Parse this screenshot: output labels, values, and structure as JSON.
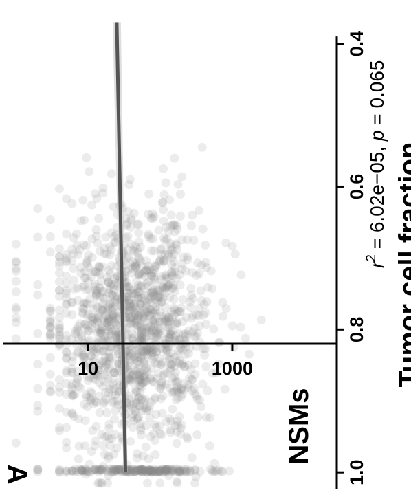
{
  "panel_label": "A",
  "chart_data": {
    "type": "scatter",
    "orientation": "rotated 90 degrees clockwise",
    "xlabel": "Tumor cell fraction",
    "ylabel": "NSMs",
    "x_ticks": [
      "0.4",
      "0.6",
      "0.8",
      "1.0"
    ],
    "x_tick_values": [
      0.4,
      0.6,
      0.8,
      1.0
    ],
    "y_ticks": [
      "10",
      "1000"
    ],
    "y_tick_values": [
      10,
      1000
    ],
    "y_scale": "log",
    "xlim": [
      0.36,
      1.02
    ],
    "ylim": [
      0.6,
      40000
    ],
    "annotation": {
      "r_symbol": "r",
      "r_exponent": "2",
      "r_value": " = 6.02e−05, ",
      "p_symbol": "p",
      "p_value": " = 0.065"
    },
    "fit_line": {
      "x": [
        0.37,
        1.0
      ],
      "y": [
        25,
        33
      ]
    },
    "point_cloud": {
      "x_range": [
        0.37,
        1.0
      ],
      "y_range": [
        1,
        10000
      ],
      "note_dense_region_x": [
        0.72,
        0.88
      ],
      "note_dense_region_y": [
        8,
        600
      ]
    }
  }
}
